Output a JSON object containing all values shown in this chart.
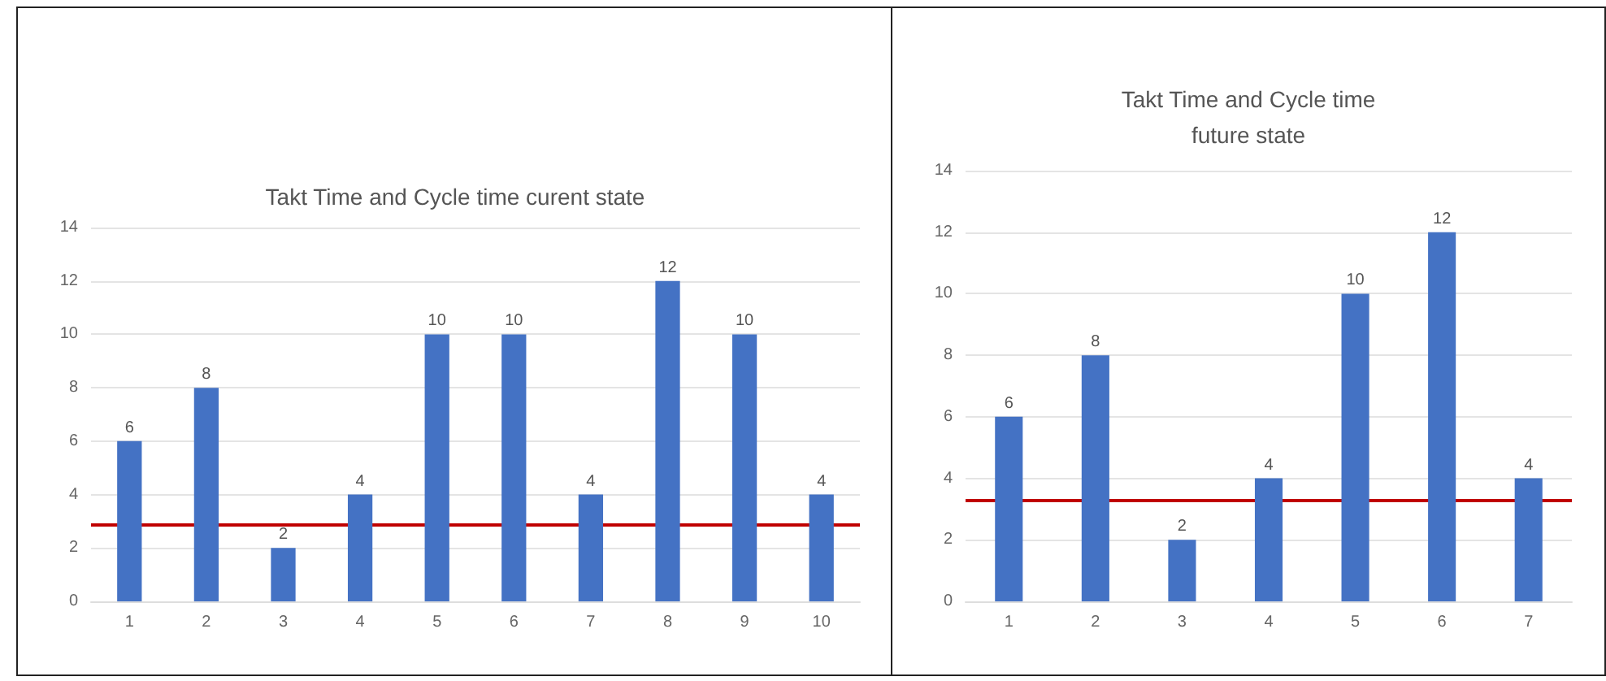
{
  "chart_data": [
    {
      "type": "bar",
      "title": "Takt Time and Cycle time curent state",
      "categories": [
        "1",
        "2",
        "3",
        "4",
        "5",
        "6",
        "7",
        "8",
        "9",
        "10"
      ],
      "series": [
        {
          "color": "#4472c4",
          "values": [
            6,
            8,
            2,
            4,
            10,
            10,
            4,
            12,
            10,
            4
          ]
        }
      ],
      "ylim": [
        0,
        14
      ],
      "yticks": [
        0,
        2,
        4,
        6,
        8,
        10,
        12,
        14
      ],
      "grid": "y",
      "data_labels": true,
      "ref_lines": [
        {
          "axis": "y",
          "value": 2.85,
          "color": "#c00000"
        }
      ]
    },
    {
      "type": "bar",
      "title": "Takt Time and Cycle time\nfuture state",
      "categories": [
        "1",
        "2",
        "3",
        "4",
        "5",
        "6",
        "7"
      ],
      "series": [
        {
          "color": "#4472c4",
          "values": [
            6,
            8,
            2,
            4,
            10,
            12,
            4
          ]
        }
      ],
      "ylim": [
        0,
        14
      ],
      "yticks": [
        0,
        2,
        4,
        6,
        8,
        10,
        12,
        14
      ],
      "grid": "y",
      "data_labels": true,
      "ref_lines": [
        {
          "axis": "y",
          "value": 3.3,
          "color": "#c00000"
        }
      ]
    }
  ]
}
